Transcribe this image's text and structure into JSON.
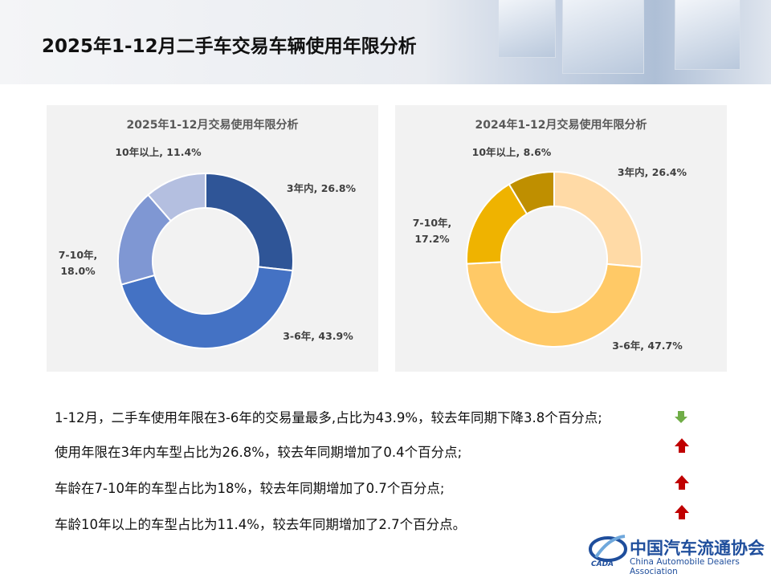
{
  "header": {
    "title": "2025年1-12月二手车交易车辆使用年限分析"
  },
  "chart_data": [
    {
      "type": "donut",
      "title": "2025年1-12月交易使用年限分析",
      "values": [
        26.8,
        43.9,
        18.0,
        11.4
      ],
      "value_labels": [
        "3年内, 26.8%",
        "3-6年, 43.9%",
        "7-10年, 18.0%",
        "10年以上, 11.4%"
      ],
      "colors": [
        "#2f5597",
        "#4472c4",
        "#7f97d3",
        "#b4bfe0"
      ]
    },
    {
      "type": "donut",
      "title": "2024年1-12月交易使用年限分析",
      "values": [
        26.4,
        47.7,
        17.2,
        8.6
      ],
      "value_labels": [
        "3年内, 26.4%",
        "3-6年, 47.7%",
        "7-10年, 17.2%",
        "10年以上, 8.6%"
      ],
      "colors": [
        "#ffdaa6",
        "#ffc966",
        "#efb300",
        "#bf8f00"
      ]
    }
  ],
  "notes": [
    "1-12月，二手车使用年限在3-6年的交易量最多,占比为43.9%，较去年同期下降3.8个百分点;",
    "使用年限在3年内车型占比为26.8%，较去年同期增加了0.4个百分点;",
    "车龄在7-10年的车型占比为18%，较去年同期增加了0.7个百分点;",
    "车龄10年以上的车型占比为11.4%，较去年同期增加了2.7个百分点。"
  ],
  "logo": {
    "name": "中国汽车流通协会",
    "english": "China Automobile Dealers Association",
    "abbr": "CADA"
  }
}
